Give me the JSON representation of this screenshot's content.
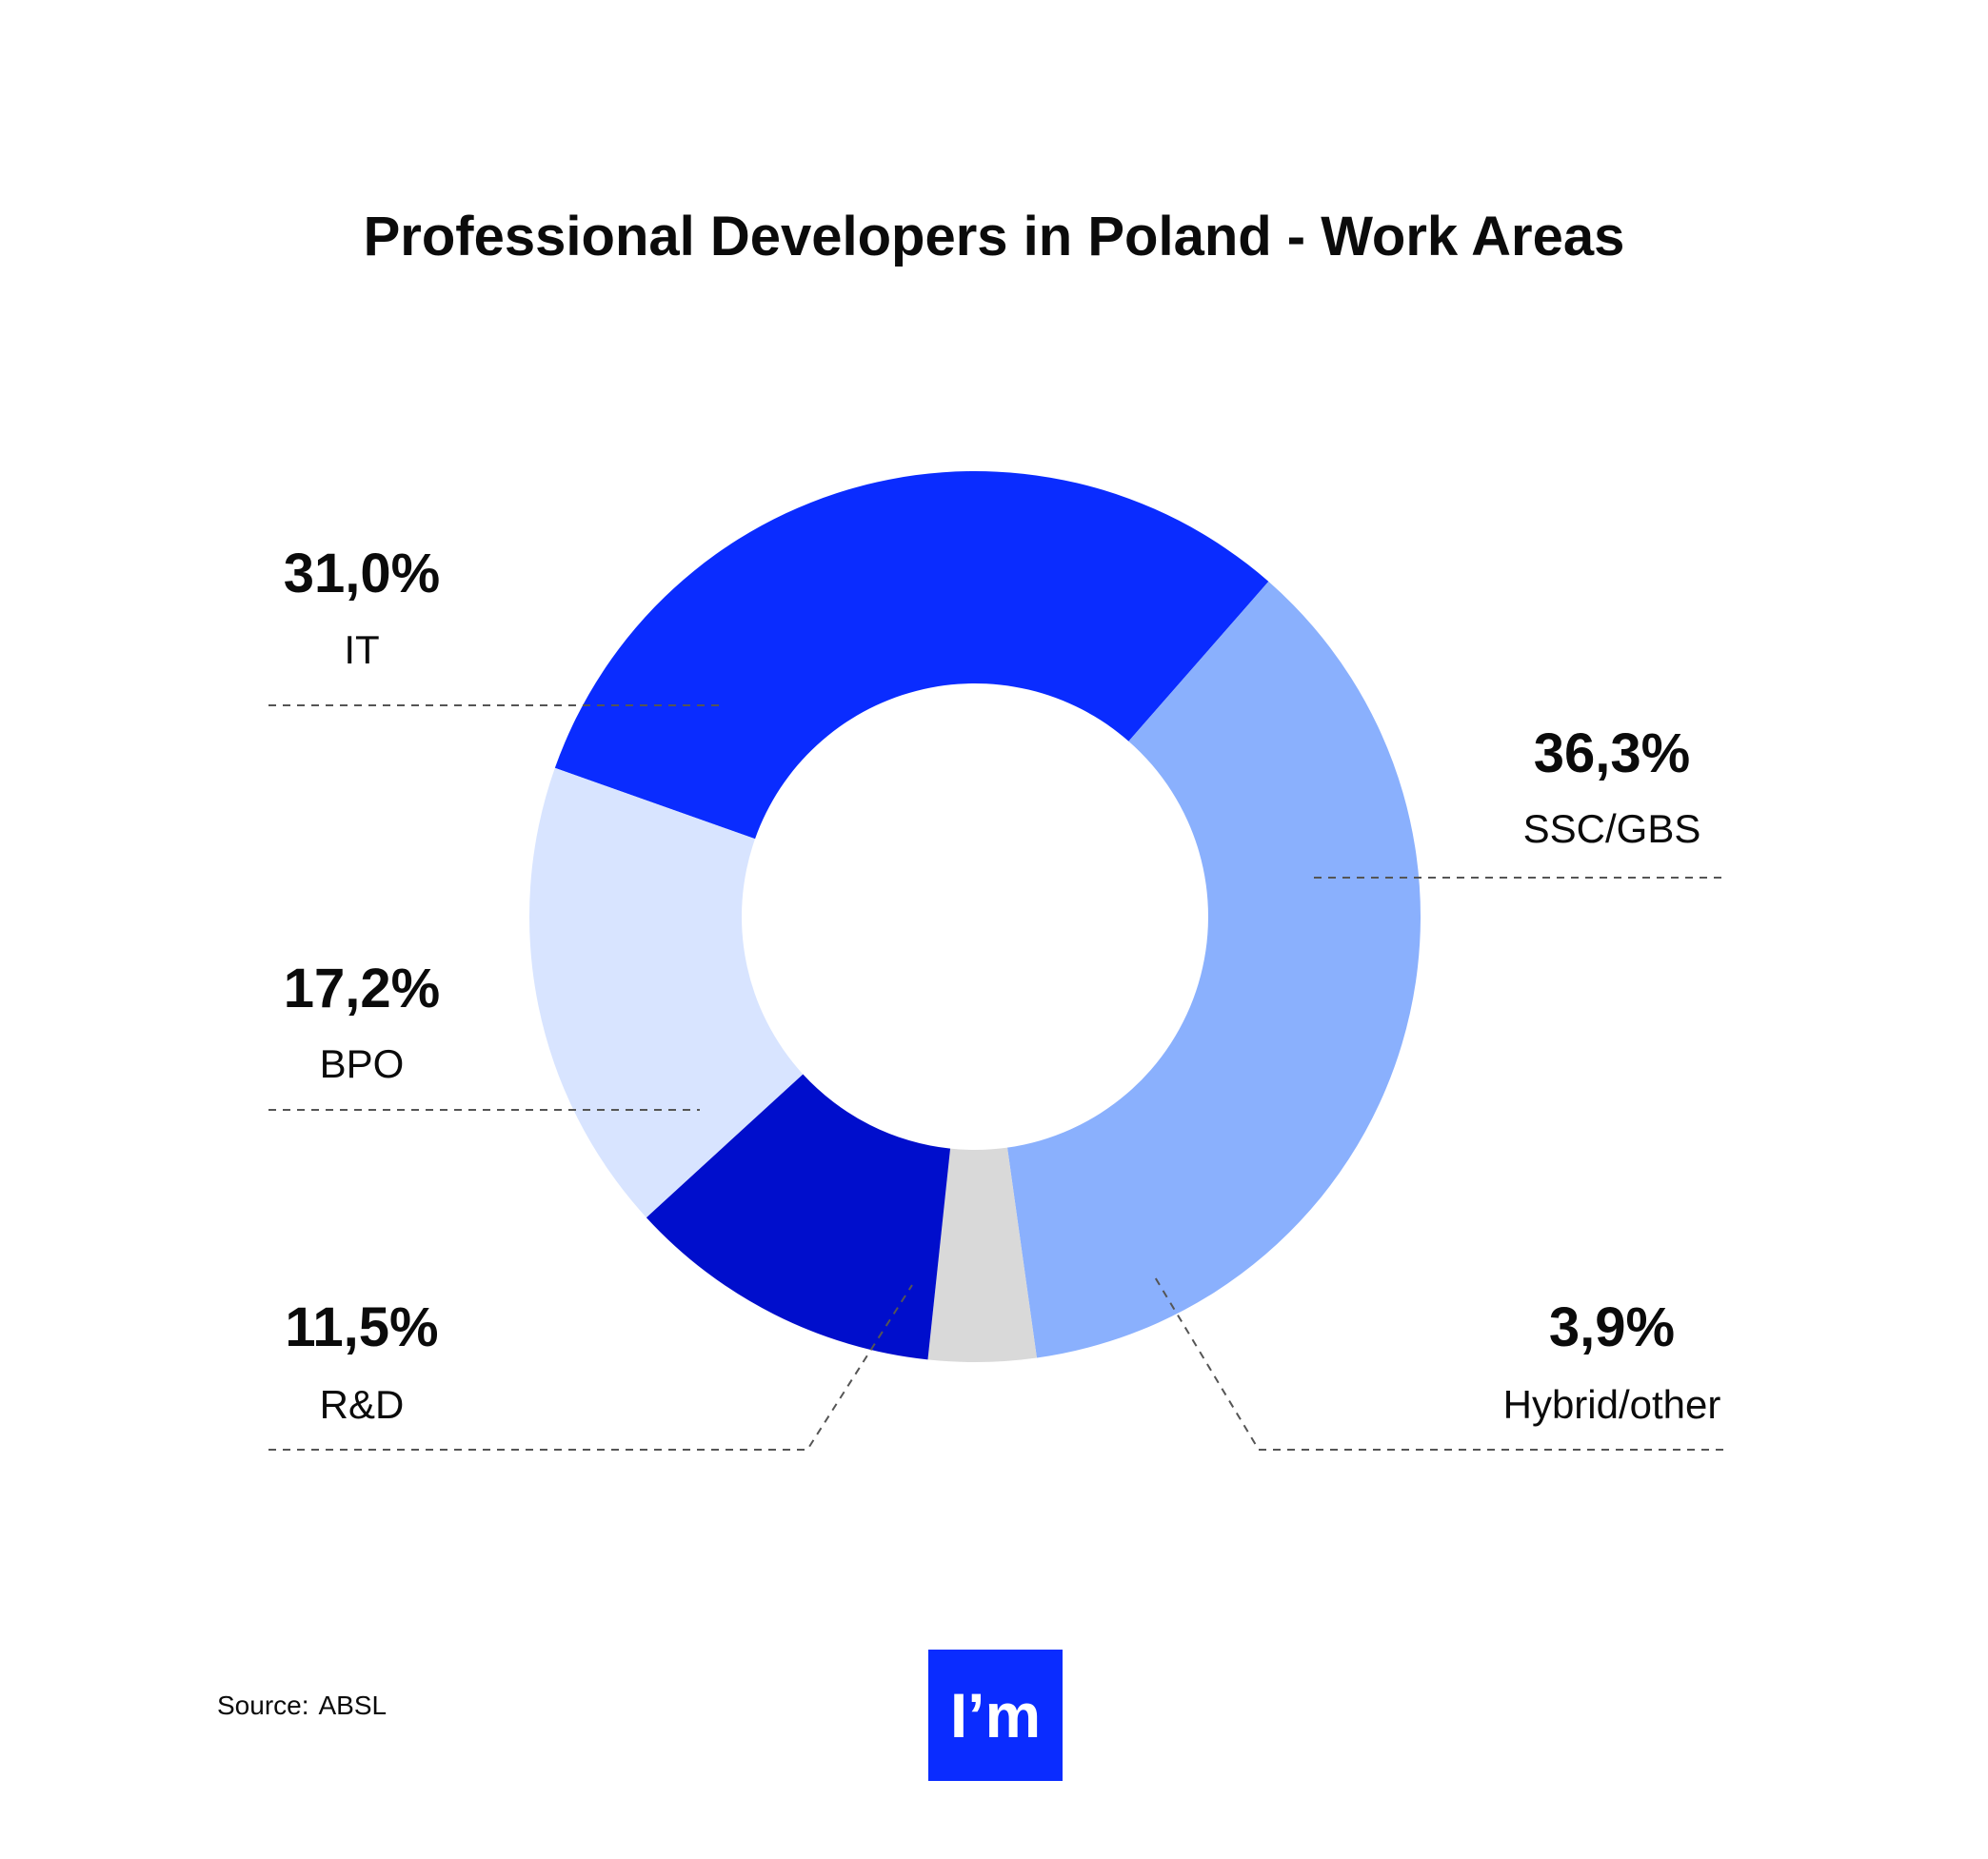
{
  "chart_data": {
    "type": "pie",
    "title": "Professional Developers in Poland - Work Areas",
    "unit": "%",
    "slices": [
      {
        "label": "IT",
        "value": 31.0,
        "display": "31,0%",
        "color": "#0a2cff"
      },
      {
        "label": "SSC/GBS",
        "value": 36.3,
        "display": "36,3%",
        "color": "#8ab0fd"
      },
      {
        "label": "Hybrid/other",
        "value": 3.9,
        "display": "3,9%",
        "color": "#d9d9d9"
      },
      {
        "label": "R&D",
        "value": 11.5,
        "display": "11,5%",
        "color": "#000ecc"
      },
      {
        "label": "BPO",
        "value": 17.2,
        "display": "17,2%",
        "color": "#d8e4ff"
      }
    ]
  },
  "footer": {
    "source_label": "Source:",
    "source_value": "ABSL",
    "logo_text": "I’m"
  }
}
